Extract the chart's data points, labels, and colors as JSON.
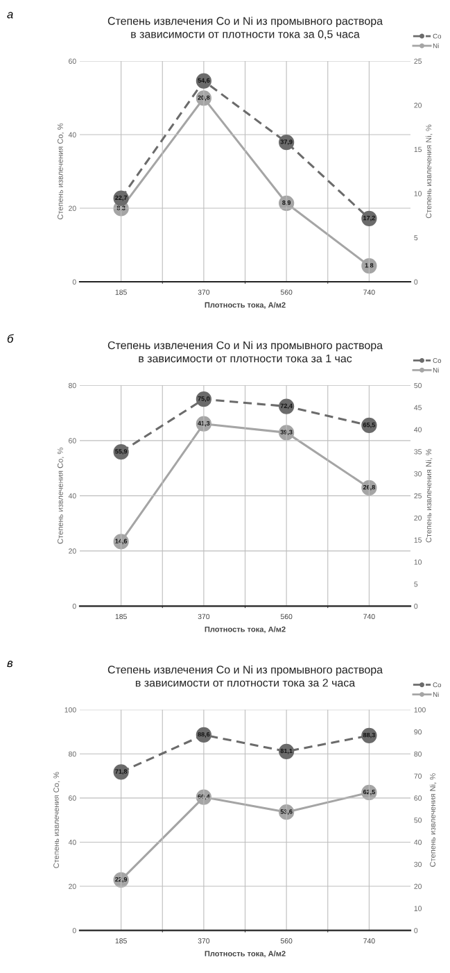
{
  "chart_data": [
    {
      "type": "line",
      "title": "Степень извлечения Co и Ni из промывного раствора\nв зависимости от плотности тока за 0,5 часа",
      "xlabel": "Плотность тока, А/м2",
      "ylabel": "Степень извлечения Co, %",
      "y2label": "Степень извлечения Ni, %",
      "annotations": [
        "а"
      ],
      "categories": [
        "185",
        "370",
        "560",
        "740"
      ],
      "series": [
        {
          "name": "Co",
          "color": "#6b6b6b",
          "values": [
            22.7,
            54.6,
            37.9,
            17.2
          ],
          "value_labels": [
            "22,7",
            "54,6",
            "37,9",
            "17,2"
          ],
          "line_style": "dashed"
        },
        {
          "name": "Ni",
          "color": "#a5a5a5",
          "values": [
            8.3,
            20.8,
            8.9,
            1.8
          ],
          "value_labels": [
            "8,3",
            "20,8",
            "8,9",
            "1,8"
          ],
          "axis": "y2",
          "line_style": "solid"
        }
      ],
      "ylim": [
        0,
        60
      ],
      "yticks": [
        0,
        20,
        40,
        60
      ],
      "y2lim": [
        0,
        25
      ],
      "y2ticks": [
        0,
        5,
        10,
        15,
        20,
        25
      ],
      "grid": true,
      "legend": "top right",
      "marker": "circle"
    },
    {
      "type": "line",
      "title": "Степень извлечения Co и Ni из промывного раствора\nв зависимости от плотности тока за 1 час",
      "xlabel": "Плотность тока, А/м2",
      "ylabel": "Степень извлечения Co, %",
      "y2label": "Степень извлечения Ni, %",
      "annotations": [
        "б"
      ],
      "categories": [
        "185",
        "370",
        "560",
        "740"
      ],
      "series": [
        {
          "name": "Co",
          "color": "#6b6b6b",
          "values": [
            55.9,
            75.0,
            72.4,
            65.5
          ],
          "value_labels": [
            "55,9",
            "75,0",
            "72,4",
            "65,5"
          ],
          "line_style": "dashed"
        },
        {
          "name": "Ni",
          "color": "#a5a5a5",
          "values": [
            14.6,
            41.3,
            39.3,
            26.8
          ],
          "value_labels": [
            "14,6",
            "41,3",
            "39,3",
            "26,8"
          ],
          "axis": "y2",
          "line_style": "solid"
        }
      ],
      "ylim": [
        0,
        80
      ],
      "yticks": [
        0,
        20,
        40,
        60,
        80
      ],
      "y2lim": [
        0,
        50
      ],
      "y2ticks": [
        0,
        5,
        10,
        15,
        20,
        25,
        30,
        35,
        40,
        45,
        50
      ],
      "grid": true,
      "legend": "top right",
      "marker": "circle"
    },
    {
      "type": "line",
      "title": "Степень извлечения Co и Ni из промывного раствора\nв зависимости от плотности тока за 2 часа",
      "xlabel": "Плотность тока, А/м2",
      "ylabel": "Степень извлечения Co, %",
      "y2label": "Степень извлечения Ni, %",
      "annotations": [
        "в"
      ],
      "categories": [
        "185",
        "370",
        "560",
        "740"
      ],
      "series": [
        {
          "name": "Co",
          "color": "#6b6b6b",
          "values": [
            71.8,
            88.6,
            81.1,
            88.3
          ],
          "value_labels": [
            "71,8",
            "88,6",
            "81,1",
            "88,3"
          ],
          "line_style": "dashed"
        },
        {
          "name": "Ni",
          "color": "#a5a5a5",
          "values": [
            22.9,
            60.4,
            53.6,
            62.5
          ],
          "value_labels": [
            "22,9",
            "60,4",
            "53,6",
            "62,5"
          ],
          "axis": "y2",
          "line_style": "solid"
        }
      ],
      "ylim": [
        0,
        100
      ],
      "yticks": [
        0,
        20,
        40,
        60,
        80,
        100
      ],
      "y2lim": [
        0,
        100
      ],
      "y2ticks": [
        0,
        10,
        20,
        30,
        40,
        50,
        60,
        70,
        80,
        90,
        100
      ],
      "grid": true,
      "legend": "top right",
      "marker": "circle"
    }
  ]
}
